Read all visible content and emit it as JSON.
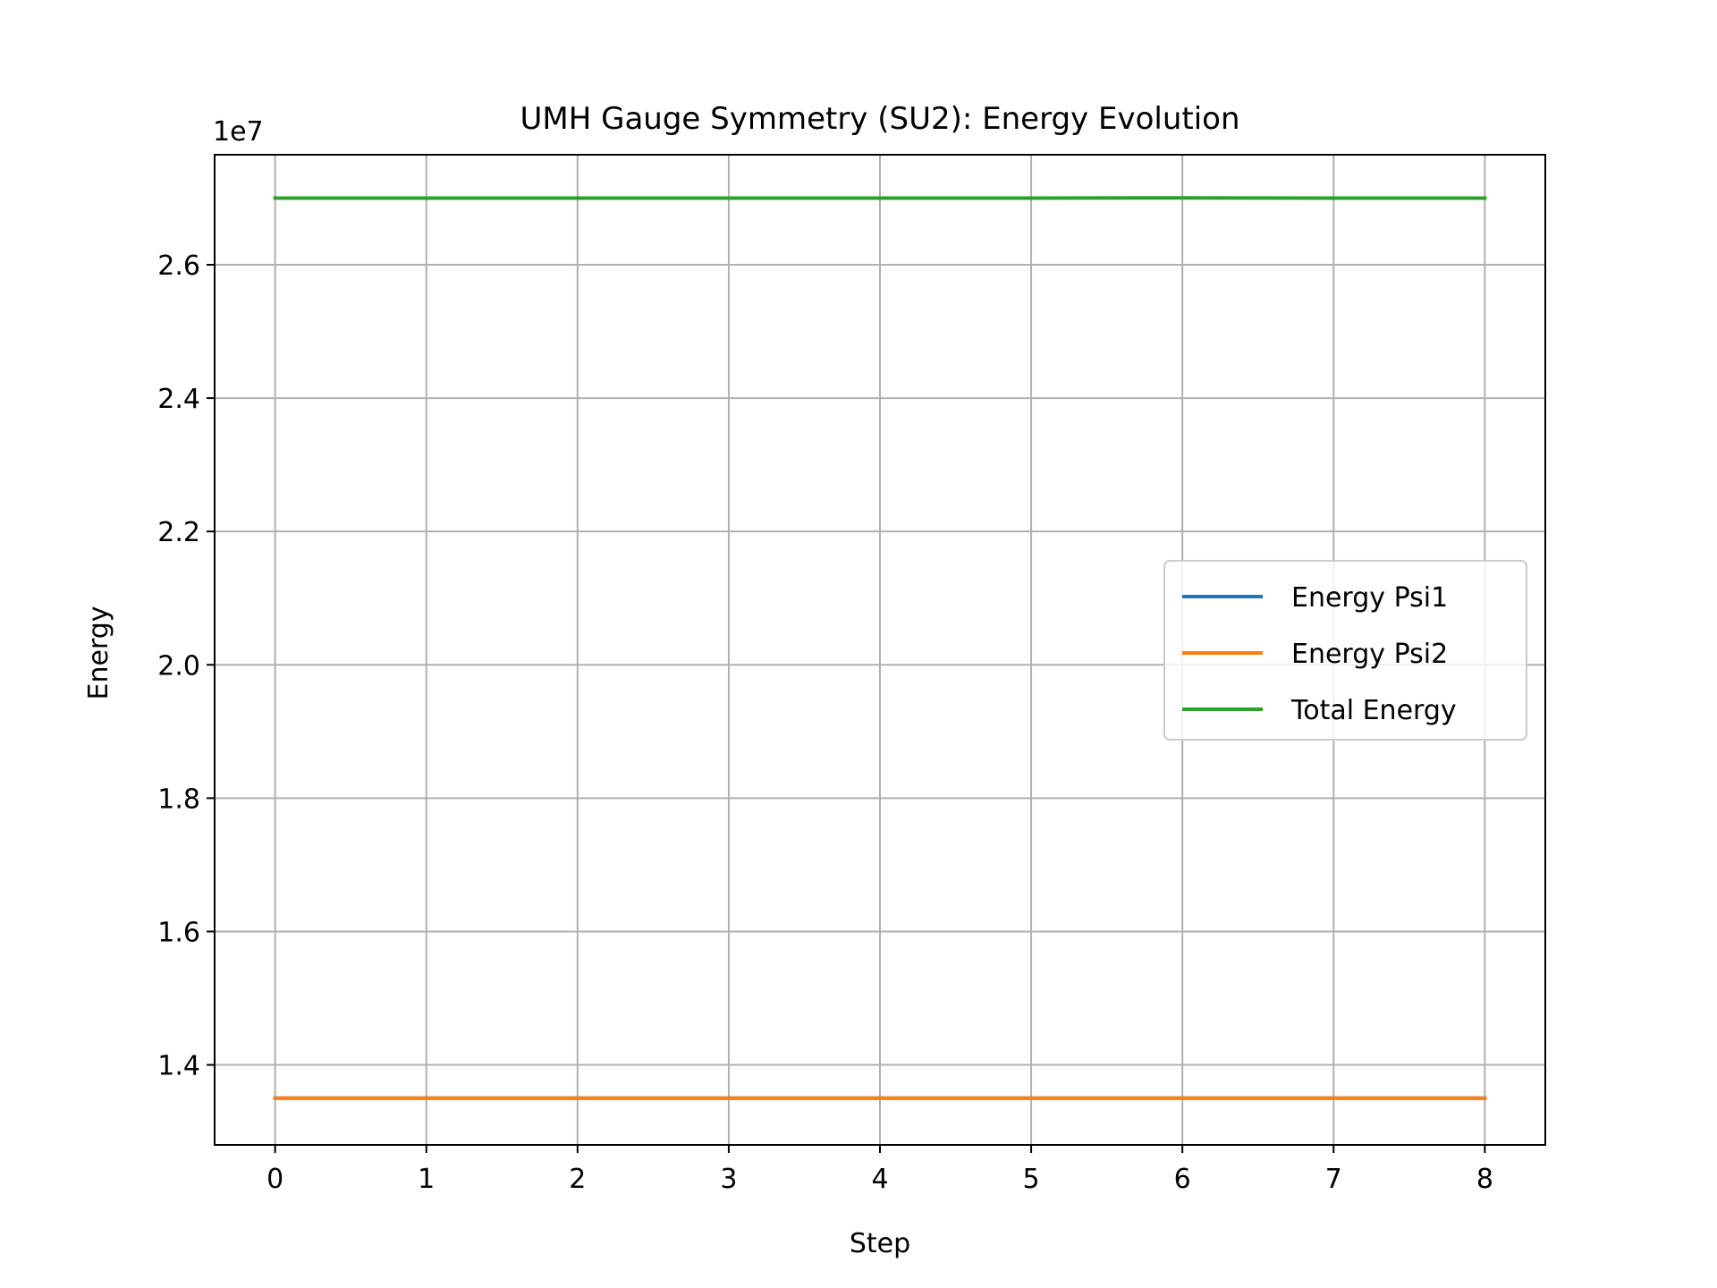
{
  "chart_data": {
    "type": "line",
    "title": "UMH Gauge Symmetry (SU2): Energy Evolution",
    "xlabel": "Step",
    "ylabel": "Energy",
    "y_offset_label": "1e7",
    "xlim": [
      -0.4,
      8.4
    ],
    "ylim": [
      1.28,
      2.765
    ],
    "x_ticks": [
      0,
      1,
      2,
      3,
      4,
      5,
      6,
      7,
      8
    ],
    "x_tick_labels": [
      "0",
      "1",
      "2",
      "3",
      "4",
      "5",
      "6",
      "7",
      "8"
    ],
    "y_ticks": [
      1.4,
      1.6,
      1.8,
      2.0,
      2.2,
      2.4,
      2.6
    ],
    "y_tick_labels": [
      "1.4",
      "1.6",
      "1.8",
      "2.0",
      "2.2",
      "2.4",
      "2.6"
    ],
    "grid": true,
    "legend_position": "center-right",
    "x": [
      0,
      1,
      2,
      3,
      4,
      5,
      6,
      7,
      8
    ],
    "series": [
      {
        "name": "Energy Psi1",
        "color": "#1f77b4",
        "values": [
          1.35,
          1.35,
          1.35,
          1.35,
          1.35,
          1.35,
          1.3502,
          1.35,
          1.35
        ]
      },
      {
        "name": "Energy Psi2",
        "color": "#ff7f0e",
        "values": [
          1.35,
          1.35,
          1.35,
          1.35,
          1.35,
          1.35,
          1.3502,
          1.35,
          1.35
        ]
      },
      {
        "name": "Total Energy",
        "color": "#2ca02c",
        "values": [
          2.7,
          2.7,
          2.7,
          2.7,
          2.7,
          2.7,
          2.7004,
          2.7,
          2.7
        ]
      }
    ]
  }
}
